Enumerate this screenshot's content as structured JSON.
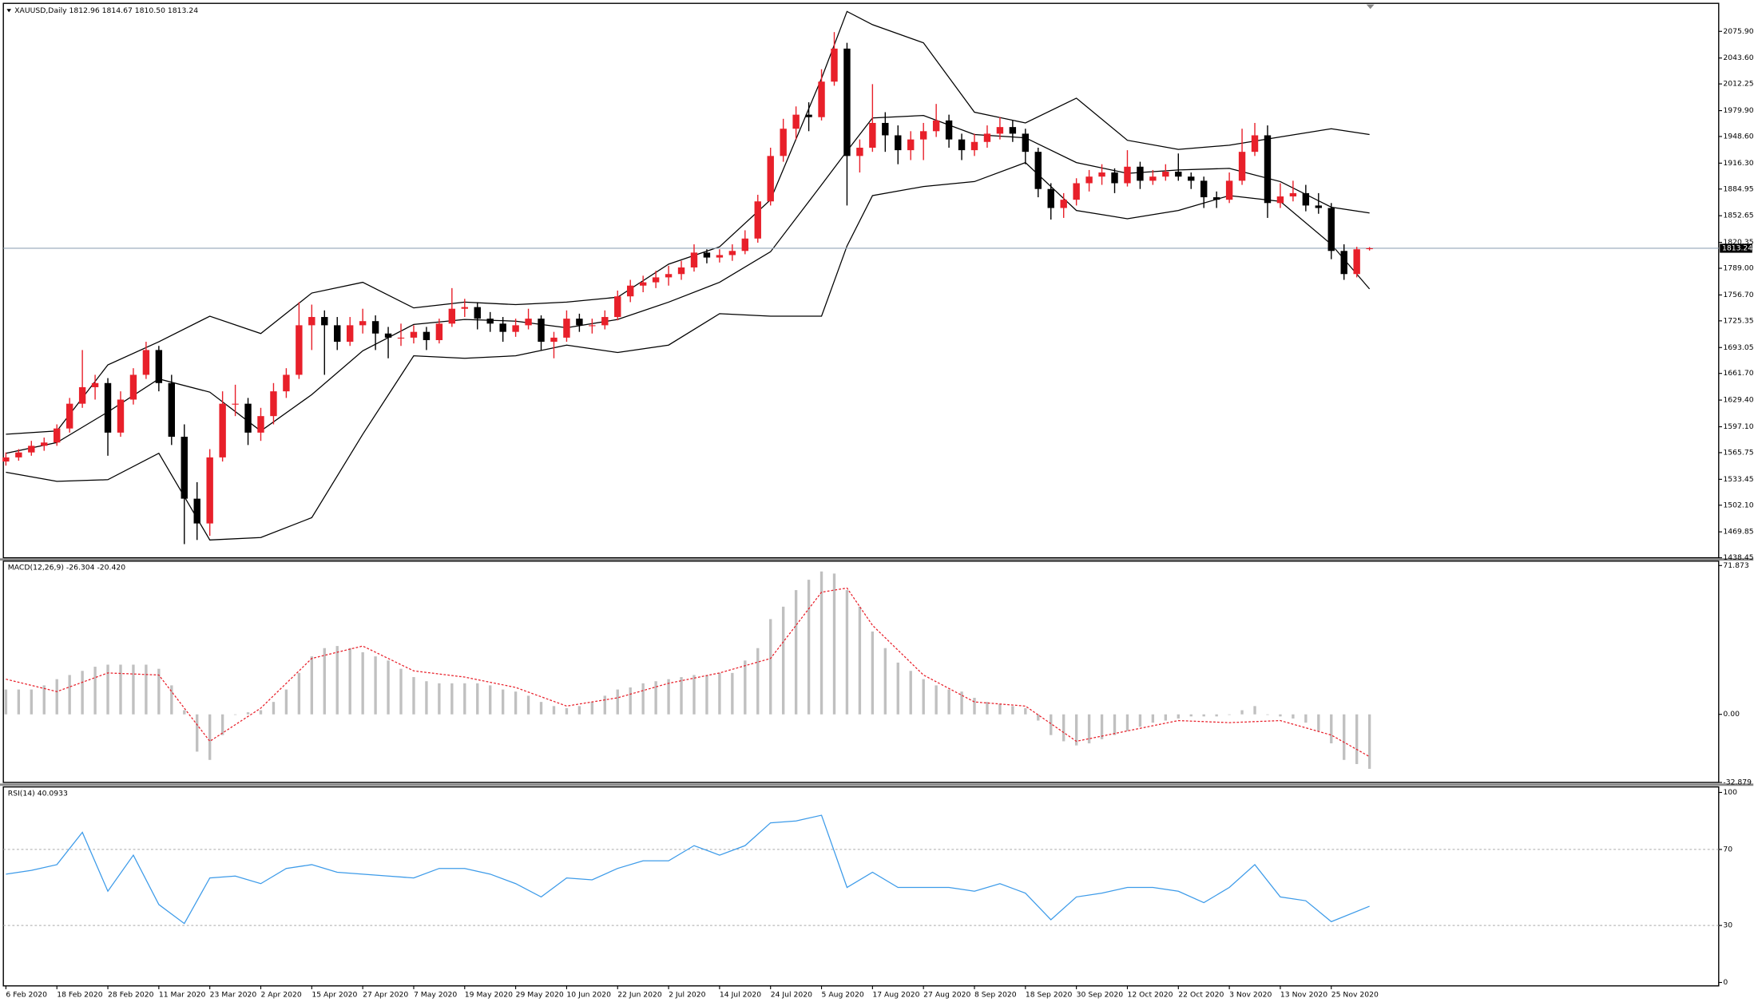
{
  "chart_data": {
    "type": "candlestick",
    "title": "XAUUSD,Daily  1812.96 1814.67 1810.50 1813.24",
    "bull_color": "#e8202a",
    "bear_color": "#000000",
    "xlim": [
      -0.2,
      134.4
    ],
    "xticks": [
      {
        "value": 0,
        "label": "6 Feb 2020"
      },
      {
        "value": 4,
        "label": "18 Feb 2020"
      },
      {
        "value": 8,
        "label": "28 Feb 2020"
      },
      {
        "value": 12,
        "label": "11 Mar 2020"
      },
      {
        "value": 16,
        "label": "23 Mar 2020"
      },
      {
        "value": 20,
        "label": "2 Apr 2020"
      },
      {
        "value": 24,
        "label": "15 Apr 2020"
      },
      {
        "value": 28,
        "label": "27 Apr 2020"
      },
      {
        "value": 32,
        "label": "7 May 2020"
      },
      {
        "value": 36,
        "label": "19 May 2020"
      },
      {
        "value": 40,
        "label": "29 May 2020"
      },
      {
        "value": 44,
        "label": "10 Jun 2020"
      },
      {
        "value": 48,
        "label": "22 Jun 2020"
      },
      {
        "value": 52,
        "label": "2 Jul 2020"
      },
      {
        "value": 56,
        "label": "14 Jul 2020"
      },
      {
        "value": 60,
        "label": "24 Jul 2020"
      },
      {
        "value": 64,
        "label": "5 Aug 2020"
      },
      {
        "value": 68,
        "label": "17 Aug 2020"
      },
      {
        "value": 72,
        "label": "27 Aug 2020"
      },
      {
        "value": 76,
        "label": "8 Sep 2020"
      },
      {
        "value": 80,
        "label": "18 Sep 2020"
      },
      {
        "value": 84,
        "label": "30 Sep 2020"
      },
      {
        "value": 88,
        "label": "12 Oct 2020"
      },
      {
        "value": 92,
        "label": "22 Oct 2020"
      },
      {
        "value": 96,
        "label": "3 Nov 2020"
      },
      {
        "value": 100,
        "label": "13 Nov 2020"
      },
      {
        "value": 104,
        "label": "25 Nov 2020"
      }
    ],
    "ylim": [
      1438.45,
      2109.8
    ],
    "yticks": [
      {
        "value": 2075.9,
        "label": "2075.90"
      },
      {
        "value": 2043.6,
        "label": "2043.60"
      },
      2012.25,
      {
        "value": 1979.9,
        "label": "1979.90"
      },
      {
        "value": 1948.6,
        "label": "1948.60"
      },
      {
        "value": 1916.3,
        "label": "1916.30"
      },
      1884.95,
      1852.65,
      1820.35,
      {
        "value": 1789,
        "label": "1789.00"
      },
      {
        "value": 1756.7,
        "label": "1756.70"
      },
      1725.35,
      1693.05,
      {
        "value": 1661.7,
        "label": "1661.70"
      },
      {
        "value": 1629.4,
        "label": "1629.40"
      },
      {
        "value": 1597.1,
        "label": "1597.10"
      },
      1565.75,
      1533.45,
      {
        "value": 1502.1,
        "label": "1502.10"
      },
      1469.85,
      1438.45
    ],
    "last_price": 1813.24,
    "candles": [
      [
        1555,
        1566,
        1550,
        1560
      ],
      [
        1560,
        1570,
        1556,
        1566
      ],
      [
        1566,
        1580,
        1562,
        1574
      ],
      [
        1574,
        1584,
        1568,
        1578
      ],
      [
        1578,
        1600,
        1574,
        1595
      ],
      [
        1595,
        1632,
        1590,
        1625
      ],
      [
        1625,
        1690,
        1620,
        1645
      ],
      [
        1645,
        1660,
        1630,
        1650
      ],
      [
        1650,
        1656,
        1562,
        1590
      ],
      [
        1590,
        1640,
        1585,
        1630
      ],
      [
        1630,
        1668,
        1624,
        1660
      ],
      [
        1660,
        1700,
        1655,
        1690
      ],
      [
        1690,
        1695,
        1640,
        1650
      ],
      [
        1650,
        1660,
        1575,
        1585
      ],
      [
        1585,
        1600,
        1455,
        1510
      ],
      [
        1510,
        1530,
        1460,
        1480
      ],
      [
        1480,
        1570,
        1465,
        1560
      ],
      [
        1560,
        1640,
        1555,
        1625
      ],
      [
        1625,
        1648,
        1610,
        1625
      ],
      [
        1625,
        1632,
        1575,
        1590
      ],
      [
        1590,
        1620,
        1580,
        1610
      ],
      [
        1610,
        1650,
        1600,
        1640
      ],
      [
        1640,
        1668,
        1632,
        1660
      ],
      [
        1660,
        1748,
        1655,
        1720
      ],
      [
        1720,
        1745,
        1690,
        1730
      ],
      [
        1730,
        1738,
        1660,
        1720
      ],
      [
        1720,
        1730,
        1690,
        1700
      ],
      [
        1700,
        1730,
        1695,
        1720
      ],
      [
        1720,
        1740,
        1710,
        1725
      ],
      [
        1725,
        1732,
        1690,
        1710
      ],
      [
        1710,
        1718,
        1680,
        1705
      ],
      [
        1705,
        1722,
        1695,
        1705
      ],
      [
        1705,
        1720,
        1698,
        1712
      ],
      [
        1712,
        1718,
        1690,
        1702
      ],
      [
        1702,
        1728,
        1698,
        1722
      ],
      [
        1722,
        1765,
        1718,
        1740
      ],
      [
        1740,
        1752,
        1730,
        1742
      ],
      [
        1742,
        1748,
        1715,
        1728
      ],
      [
        1728,
        1736,
        1712,
        1722
      ],
      [
        1722,
        1730,
        1700,
        1712
      ],
      [
        1712,
        1728,
        1706,
        1720
      ],
      [
        1720,
        1740,
        1715,
        1728
      ],
      [
        1728,
        1732,
        1690,
        1700
      ],
      [
        1700,
        1712,
        1680,
        1705
      ],
      [
        1705,
        1738,
        1700,
        1728
      ],
      [
        1728,
        1734,
        1712,
        1720
      ],
      [
        1720,
        1728,
        1710,
        1720
      ],
      [
        1720,
        1738,
        1715,
        1730
      ],
      [
        1730,
        1762,
        1726,
        1755
      ],
      [
        1755,
        1775,
        1748,
        1768
      ],
      [
        1768,
        1780,
        1760,
        1772
      ],
      [
        1772,
        1786,
        1765,
        1778
      ],
      [
        1778,
        1792,
        1768,
        1782
      ],
      [
        1782,
        1798,
        1775,
        1790
      ],
      [
        1790,
        1818,
        1785,
        1808
      ],
      [
        1808,
        1812,
        1795,
        1802
      ],
      [
        1802,
        1812,
        1796,
        1805
      ],
      [
        1805,
        1818,
        1798,
        1810
      ],
      [
        1810,
        1835,
        1806,
        1825
      ],
      [
        1825,
        1878,
        1820,
        1870
      ],
      [
        1870,
        1935,
        1865,
        1925
      ],
      [
        1925,
        1970,
        1918,
        1958
      ],
      [
        1958,
        1985,
        1945,
        1975
      ],
      [
        1975,
        1990,
        1955,
        1972
      ],
      [
        1972,
        2030,
        1968,
        2015
      ],
      [
        2015,
        2075,
        2010,
        2055
      ],
      [
        2055,
        2062,
        1865,
        1925
      ],
      [
        1925,
        1945,
        1905,
        1935
      ],
      [
        1935,
        2012,
        1930,
        1965
      ],
      [
        1965,
        1978,
        1930,
        1950
      ],
      [
        1950,
        1962,
        1915,
        1932
      ],
      [
        1932,
        1955,
        1920,
        1945
      ],
      [
        1945,
        1965,
        1920,
        1955
      ],
      [
        1955,
        1988,
        1948,
        1968
      ],
      [
        1968,
        1975,
        1935,
        1945
      ],
      [
        1945,
        1952,
        1920,
        1932
      ],
      [
        1932,
        1952,
        1925,
        1942
      ],
      [
        1942,
        1962,
        1935,
        1952
      ],
      [
        1952,
        1972,
        1945,
        1960
      ],
      [
        1960,
        1968,
        1942,
        1952
      ],
      [
        1952,
        1958,
        1915,
        1930
      ],
      [
        1930,
        1935,
        1875,
        1885
      ],
      [
        1885,
        1892,
        1848,
        1862
      ],
      [
        1862,
        1880,
        1850,
        1872
      ],
      [
        1872,
        1898,
        1865,
        1892
      ],
      [
        1892,
        1908,
        1882,
        1900
      ],
      [
        1900,
        1915,
        1890,
        1905
      ],
      [
        1905,
        1910,
        1880,
        1892
      ],
      [
        1892,
        1932,
        1888,
        1912
      ],
      [
        1912,
        1918,
        1885,
        1895
      ],
      [
        1895,
        1908,
        1890,
        1900
      ],
      [
        1900,
        1915,
        1895,
        1906
      ],
      [
        1906,
        1928,
        1895,
        1900
      ],
      [
        1900,
        1905,
        1885,
        1895
      ],
      [
        1895,
        1900,
        1862,
        1875
      ],
      [
        1875,
        1882,
        1862,
        1872
      ],
      [
        1872,
        1905,
        1868,
        1895
      ],
      [
        1895,
        1958,
        1890,
        1930
      ],
      [
        1930,
        1965,
        1925,
        1950
      ],
      [
        1950,
        1962,
        1850,
        1868
      ],
      [
        1868,
        1892,
        1862,
        1876
      ],
      [
        1876,
        1895,
        1870,
        1880
      ],
      [
        1880,
        1890,
        1858,
        1865
      ],
      [
        1865,
        1880,
        1855,
        1862
      ],
      [
        1862,
        1868,
        1800,
        1810
      ],
      [
        1810,
        1818,
        1775,
        1782
      ],
      [
        1782,
        1815,
        1778,
        1812
      ],
      [
        1812.96,
        1814.67,
        1810.5,
        1813.24
      ]
    ],
    "bands": {
      "color": "#000000",
      "x": [
        0,
        4,
        8,
        12,
        16,
        20,
        24,
        28,
        32,
        36,
        40,
        44,
        48,
        52,
        56,
        60,
        64,
        66,
        68,
        72,
        76,
        80,
        84,
        88,
        92,
        96,
        100,
        104,
        107
      ],
      "upper": [
        1588,
        1592,
        1672,
        1700,
        1731,
        1710,
        1759,
        1772,
        1741,
        1748,
        1745,
        1748,
        1754,
        1794,
        1815,
        1872,
        2019,
        2100,
        2084,
        2062,
        1978,
        1965,
        1995,
        1944,
        1933,
        1938,
        1948,
        1958,
        1951
      ],
      "middle": [
        1565,
        1578,
        1615,
        1655,
        1639,
        1592,
        1636,
        1689,
        1721,
        1727,
        1725,
        1717,
        1727,
        1748,
        1772,
        1809,
        1890,
        1931,
        1971,
        1974,
        1951,
        1947,
        1917,
        1904,
        1908,
        1910,
        1894,
        1863,
        1856
      ],
      "lower": [
        1542,
        1531,
        1533,
        1565,
        1460,
        1463,
        1487,
        1588,
        1683,
        1680,
        1683,
        1696,
        1687,
        1696,
        1734,
        1731,
        1731,
        1816,
        1877,
        1888,
        1894,
        1917,
        1859,
        1849,
        1859,
        1877,
        1870,
        1818,
        1764
      ]
    },
    "macd": {
      "title": "MACD(12,26,9) -26.304 -20.420",
      "ylim": [
        -32.879,
        74.0
      ],
      "yticks": [
        71.873,
        {
          "value": 0,
          "label": "0.00"
        },
        -32.879
      ],
      "histogram": {
        "color": "#c0c0c0",
        "values": [
          12,
          12,
          12,
          14,
          17,
          19,
          21,
          23,
          24,
          24,
          24,
          24,
          22,
          14,
          2,
          -18,
          -22,
          -10,
          0,
          1,
          2,
          6,
          12,
          20,
          28,
          32,
          33,
          32,
          30,
          28,
          26,
          22,
          18,
          16,
          15,
          15,
          15,
          15,
          14,
          12,
          11,
          9,
          6,
          4,
          3,
          4,
          6,
          9,
          12,
          13,
          15,
          16,
          17,
          18,
          19,
          19,
          20,
          20,
          26,
          32,
          46,
          52,
          60,
          65,
          69,
          68,
          60,
          52,
          40,
          32,
          25,
          21,
          17,
          14,
          12,
          11,
          8,
          6,
          5,
          4,
          3,
          -3,
          -10,
          -13,
          -15,
          -14,
          -12,
          -10,
          -8,
          -6,
          -4,
          -3,
          -2,
          -1,
          -1,
          -1,
          0,
          2,
          4,
          0,
          -1,
          -2,
          -4,
          -8,
          -14,
          -22,
          -24,
          -26.304
        ]
      },
      "signal": {
        "color": "#e8202a",
        "x": [
          0,
          4,
          8,
          12,
          16,
          20,
          24,
          28,
          32,
          36,
          40,
          44,
          48,
          52,
          56,
          60,
          64,
          66,
          68,
          72,
          76,
          80,
          84,
          88,
          92,
          96,
          100,
          104,
          107
        ],
        "values": [
          17,
          11,
          20,
          19,
          -13,
          3,
          27,
          33,
          21,
          18,
          13,
          4,
          8,
          15,
          20,
          27,
          59,
          61,
          43,
          19,
          6,
          4,
          -13,
          -8,
          -3,
          -4,
          -3,
          -10,
          -20.42
        ]
      }
    },
    "rsi": {
      "title": "RSI(14) 40.0933",
      "ylim": [
        -1.8,
        102.9
      ],
      "yticks": [
        100,
        70,
        30,
        0
      ],
      "levels": [
        70,
        30
      ],
      "color": "#3d9be9",
      "x": [
        0,
        2,
        4,
        6,
        8,
        10,
        12,
        14,
        16,
        18,
        20,
        22,
        24,
        26,
        28,
        30,
        32,
        34,
        36,
        38,
        40,
        42,
        44,
        46,
        48,
        50,
        52,
        54,
        56,
        58,
        60,
        62,
        64,
        66,
        68,
        70,
        72,
        74,
        76,
        78,
        80,
        82,
        84,
        86,
        88,
        90,
        92,
        94,
        96,
        98,
        100,
        102,
        104,
        107
      ],
      "values": [
        57,
        59,
        62,
        79,
        48,
        67,
        41,
        31,
        55,
        56,
        52,
        60,
        62,
        58,
        57,
        56,
        55,
        60,
        60,
        57,
        52,
        45,
        55,
        54,
        60,
        64,
        64,
        72,
        67,
        72,
        84,
        85,
        88,
        50,
        58,
        50,
        50,
        50,
        48,
        52,
        47,
        33,
        45,
        47,
        50,
        50,
        48,
        42,
        50,
        62,
        45,
        43,
        32,
        40.0933
      ]
    }
  }
}
